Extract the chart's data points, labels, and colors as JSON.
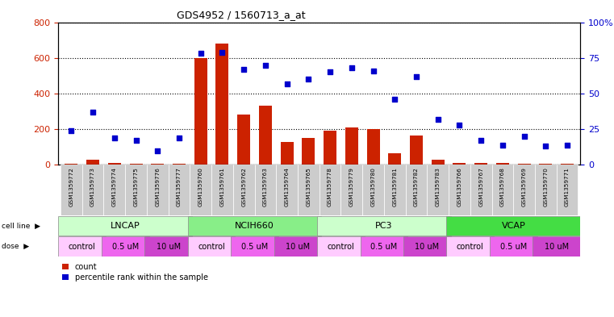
{
  "title": "GDS4952 / 1560713_a_at",
  "samples": [
    "GSM1359772",
    "GSM1359773",
    "GSM1359774",
    "GSM1359775",
    "GSM1359776",
    "GSM1359777",
    "GSM1359760",
    "GSM1359761",
    "GSM1359762",
    "GSM1359763",
    "GSM1359764",
    "GSM1359765",
    "GSM1359778",
    "GSM1359779",
    "GSM1359780",
    "GSM1359781",
    "GSM1359782",
    "GSM1359783",
    "GSM1359766",
    "GSM1359767",
    "GSM1359768",
    "GSM1359769",
    "GSM1359770",
    "GSM1359771"
  ],
  "counts": [
    8,
    30,
    10,
    8,
    8,
    8,
    600,
    680,
    280,
    330,
    130,
    150,
    190,
    210,
    200,
    65,
    165,
    28,
    10,
    10,
    10,
    8,
    8,
    8
  ],
  "percentile_ranks": [
    24,
    37,
    19,
    17,
    10,
    19,
    78,
    79,
    67,
    70,
    57,
    60,
    65,
    68,
    66,
    46,
    62,
    32,
    28,
    17,
    14,
    20,
    13,
    14
  ],
  "cl_names": [
    "LNCAP",
    "NCIH660",
    "PC3",
    "VCAP"
  ],
  "cl_boundaries": [
    0,
    6,
    12,
    18,
    24
  ],
  "cl_colors": [
    "#ccffcc",
    "#88ee88",
    "#ccffcc",
    "#44dd44"
  ],
  "dose_groups": [
    [
      0,
      2,
      "control",
      "#ffccff"
    ],
    [
      2,
      4,
      "0.5 uM",
      "#ee66ee"
    ],
    [
      4,
      6,
      "10 uM",
      "#cc44cc"
    ],
    [
      6,
      8,
      "control",
      "#ffccff"
    ],
    [
      8,
      10,
      "0.5 uM",
      "#ee66ee"
    ],
    [
      10,
      12,
      "10 uM",
      "#cc44cc"
    ],
    [
      12,
      14,
      "control",
      "#ffccff"
    ],
    [
      14,
      16,
      "0.5 uM",
      "#ee66ee"
    ],
    [
      16,
      18,
      "10 uM",
      "#cc44cc"
    ],
    [
      18,
      20,
      "control",
      "#ffccff"
    ],
    [
      20,
      22,
      "0.5 uM",
      "#ee66ee"
    ],
    [
      22,
      24,
      "10 uM",
      "#cc44cc"
    ]
  ],
  "bar_color": "#cc2200",
  "scatter_color": "#0000cc",
  "ylim_left": [
    0,
    800
  ],
  "ylim_right": [
    0,
    100
  ],
  "yticks_left": [
    0,
    200,
    400,
    600,
    800
  ],
  "yticks_right": [
    0,
    25,
    50,
    75,
    100
  ],
  "left_tick_color": "#cc2200",
  "right_tick_color": "#0000cc",
  "bg_gray": "#d8d8d8",
  "xtick_bg": "#cccccc"
}
